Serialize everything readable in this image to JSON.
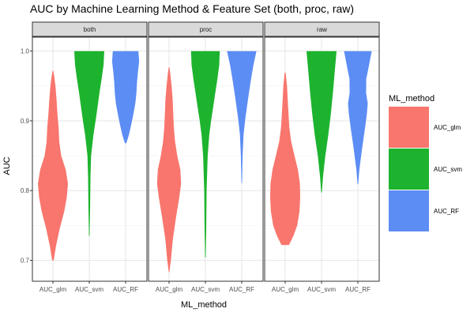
{
  "chart_data": {
    "type": "violin",
    "title": "AUC by Machine Learning Method & Feature Set (both, proc, raw)",
    "xlabel": "ML_method",
    "ylabel": "AUC",
    "ylim": [
      0.67,
      1.02
    ],
    "y_ticks": [
      0.7,
      0.8,
      0.9,
      1.0
    ],
    "y_tick_labels": [
      "0.7",
      "0.8",
      "0.9",
      "1.0"
    ],
    "grid": true,
    "categories": [
      "AUC_glm",
      "AUC_svm",
      "AUC_RF"
    ],
    "legend": {
      "title": "ML_method",
      "position": "right",
      "entries": [
        "AUC_glm",
        "AUC_svm",
        "AUC_RF"
      ]
    },
    "colors": {
      "AUC_glm": "#F8766D",
      "AUC_svm": "#1DB32E",
      "AUC_RF": "#5C8DF5"
    },
    "facets": [
      {
        "label": "both",
        "violins": [
          {
            "category": "AUC_glm",
            "y_min": 0.7,
            "y_max": 0.972,
            "profile": [
              [
                0.7,
                0.05
              ],
              [
                0.72,
                0.2
              ],
              [
                0.745,
                0.45
              ],
              [
                0.77,
                0.75
              ],
              [
                0.79,
                0.92
              ],
              [
                0.81,
                1.0
              ],
              [
                0.83,
                0.85
              ],
              [
                0.85,
                0.55
              ],
              [
                0.87,
                0.42
              ],
              [
                0.89,
                0.38
              ],
              [
                0.91,
                0.3
              ],
              [
                0.93,
                0.24
              ],
              [
                0.95,
                0.17
              ],
              [
                0.965,
                0.08
              ],
              [
                0.972,
                0.02
              ]
            ]
          },
          {
            "category": "AUC_svm",
            "y_min": 0.735,
            "y_max": 1.0,
            "profile": [
              [
                0.735,
                0.02
              ],
              [
                0.78,
                0.06
              ],
              [
                0.82,
                0.08
              ],
              [
                0.85,
                0.12
              ],
              [
                0.88,
                0.28
              ],
              [
                0.9,
                0.42
              ],
              [
                0.92,
                0.55
              ],
              [
                0.94,
                0.68
              ],
              [
                0.96,
                0.82
              ],
              [
                0.98,
                0.95
              ],
              [
                1.0,
                1.0
              ]
            ]
          },
          {
            "category": "AUC_RF",
            "y_min": 0.868,
            "y_max": 1.0,
            "profile": [
              [
                0.868,
                0.05
              ],
              [
                0.88,
                0.22
              ],
              [
                0.895,
                0.38
              ],
              [
                0.91,
                0.52
              ],
              [
                0.925,
                0.65
              ],
              [
                0.94,
                0.72
              ],
              [
                0.955,
                0.76
              ],
              [
                0.97,
                0.82
              ],
              [
                0.985,
                0.9
              ],
              [
                1.0,
                0.85
              ]
            ]
          }
        ]
      },
      {
        "label": "proc",
        "violins": [
          {
            "category": "AUC_glm",
            "y_min": 0.683,
            "y_max": 0.977,
            "profile": [
              [
                0.683,
                0.02
              ],
              [
                0.7,
                0.12
              ],
              [
                0.73,
                0.25
              ],
              [
                0.76,
                0.45
              ],
              [
                0.79,
                0.68
              ],
              [
                0.81,
                0.8
              ],
              [
                0.83,
                0.75
              ],
              [
                0.85,
                0.55
              ],
              [
                0.87,
                0.4
              ],
              [
                0.89,
                0.32
              ],
              [
                0.91,
                0.28
              ],
              [
                0.93,
                0.24
              ],
              [
                0.95,
                0.17
              ],
              [
                0.97,
                0.07
              ],
              [
                0.977,
                0.02
              ]
            ]
          },
          {
            "category": "AUC_svm",
            "y_min": 0.704,
            "y_max": 1.0,
            "profile": [
              [
                0.704,
                0.02
              ],
              [
                0.75,
                0.06
              ],
              [
                0.8,
                0.08
              ],
              [
                0.85,
                0.15
              ],
              [
                0.88,
                0.26
              ],
              [
                0.9,
                0.38
              ],
              [
                0.92,
                0.52
              ],
              [
                0.94,
                0.66
              ],
              [
                0.96,
                0.8
              ],
              [
                0.98,
                0.92
              ],
              [
                1.0,
                0.96
              ]
            ]
          },
          {
            "category": "AUC_RF",
            "y_min": 0.811,
            "y_max": 1.0,
            "profile": [
              [
                0.811,
                0.02
              ],
              [
                0.85,
                0.06
              ],
              [
                0.88,
                0.12
              ],
              [
                0.9,
                0.22
              ],
              [
                0.92,
                0.35
              ],
              [
                0.94,
                0.48
              ],
              [
                0.96,
                0.62
              ],
              [
                0.98,
                0.78
              ],
              [
                1.0,
                0.98
              ]
            ]
          }
        ]
      },
      {
        "label": "raw",
        "violins": [
          {
            "category": "AUC_glm",
            "y_min": 0.722,
            "y_max": 0.969,
            "profile": [
              [
                0.722,
                0.25
              ],
              [
                0.735,
                0.55
              ],
              [
                0.75,
                0.8
              ],
              [
                0.77,
                0.95
              ],
              [
                0.79,
                1.0
              ],
              [
                0.81,
                0.98
              ],
              [
                0.83,
                0.85
              ],
              [
                0.85,
                0.62
              ],
              [
                0.87,
                0.4
              ],
              [
                0.89,
                0.28
              ],
              [
                0.91,
                0.22
              ],
              [
                0.93,
                0.17
              ],
              [
                0.95,
                0.12
              ],
              [
                0.969,
                0.03
              ]
            ]
          },
          {
            "category": "AUC_svm",
            "y_min": 0.797,
            "y_max": 1.0,
            "profile": [
              [
                0.797,
                0.02
              ],
              [
                0.82,
                0.1
              ],
              [
                0.85,
                0.25
              ],
              [
                0.88,
                0.45
              ],
              [
                0.91,
                0.62
              ],
              [
                0.94,
                0.76
              ],
              [
                0.97,
                0.88
              ],
              [
                1.0,
                1.0
              ]
            ]
          },
          {
            "category": "AUC_RF",
            "y_min": 0.809,
            "y_max": 1.0,
            "profile": [
              [
                0.809,
                0.02
              ],
              [
                0.83,
                0.1
              ],
              [
                0.86,
                0.28
              ],
              [
                0.89,
                0.48
              ],
              [
                0.91,
                0.6
              ],
              [
                0.925,
                0.66
              ],
              [
                0.94,
                0.55
              ],
              [
                0.96,
                0.56
              ],
              [
                0.975,
                0.7
              ],
              [
                1.0,
                0.92
              ]
            ]
          }
        ]
      }
    ]
  }
}
